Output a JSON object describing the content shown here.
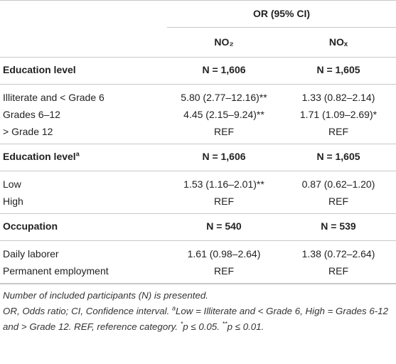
{
  "header": {
    "group": "OR (95% CI)",
    "columns": [
      "NO₂",
      "NOₓ"
    ]
  },
  "sections": [
    {
      "title": "Education level",
      "n": [
        "N = 1,606",
        "N = 1,605"
      ],
      "rows": [
        [
          "Illiterate and < Grade 6",
          "5.80 (2.77–12.16)**",
          "1.33 (0.82–2.14)"
        ],
        [
          "Grades 6–12",
          "4.45 (2.15–9.24)**",
          "1.71 (1.09–2.69)*"
        ],
        [
          "> Grade 12",
          "REF",
          "REF"
        ]
      ]
    },
    {
      "title": "Education level",
      "title_sup": "a",
      "n": [
        "N = 1,606",
        "N = 1,605"
      ],
      "rows": [
        [
          "Low",
          "1.53 (1.16–2.01)**",
          "0.87 (0.62–1.20)"
        ],
        [
          "High",
          "REF",
          "REF"
        ]
      ]
    },
    {
      "title": "Occupation",
      "n": [
        "N = 540",
        "N = 539"
      ],
      "rows": [
        [
          "Daily laborer",
          "1.61 (0.98–2.64)",
          "1.38 (0.72–2.64)"
        ],
        [
          "Permanent employment",
          "REF",
          "REF"
        ]
      ]
    }
  ],
  "footnotes": [
    [
      {
        "text": "Number of included participants (N) is presented."
      }
    ],
    [
      {
        "text": "OR, Odds ratio; CI, Confidence interval. "
      },
      {
        "text": "a",
        "sup": true
      },
      {
        "text": "Low = Illiterate and < Grade 6, High = Grades 6-12 and > Grade 12. REF, reference category. "
      },
      {
        "text": "*",
        "sup": true
      },
      {
        "text": "p ≤ 0.05. "
      },
      {
        "text": "**",
        "sup": true
      },
      {
        "text": "p ≤ 0.01."
      }
    ]
  ]
}
